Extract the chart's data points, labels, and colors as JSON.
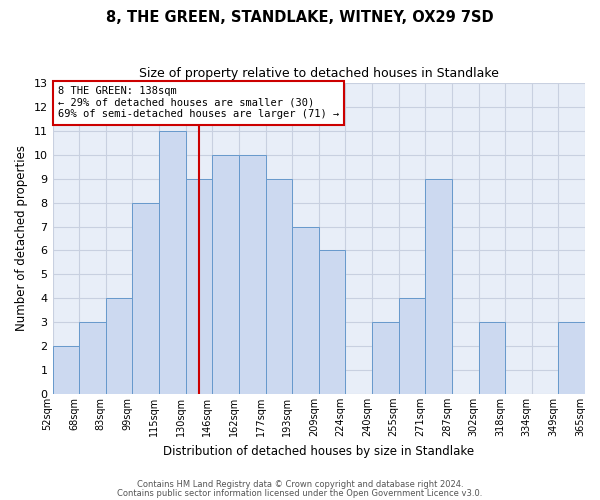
{
  "title": "8, THE GREEN, STANDLAKE, WITNEY, OX29 7SD",
  "subtitle": "Size of property relative to detached houses in Standlake",
  "xlabel": "Distribution of detached houses by size in Standlake",
  "ylabel": "Number of detached properties",
  "bin_labels": [
    "52sqm",
    "68sqm",
    "83sqm",
    "99sqm",
    "115sqm",
    "130sqm",
    "146sqm",
    "162sqm",
    "177sqm",
    "193sqm",
    "209sqm",
    "224sqm",
    "240sqm",
    "255sqm",
    "271sqm",
    "287sqm",
    "302sqm",
    "318sqm",
    "334sqm",
    "349sqm",
    "365sqm"
  ],
  "bar_heights": [
    2,
    3,
    4,
    8,
    11,
    9,
    10,
    10,
    9,
    7,
    6,
    0,
    3,
    4,
    9,
    0,
    3,
    0,
    0,
    3
  ],
  "bar_color": "#ccd9f0",
  "bar_edge_color": "#6699cc",
  "vline_position": 5.5,
  "vline_color": "#cc0000",
  "ylim": [
    0,
    13
  ],
  "yticks": [
    0,
    1,
    2,
    3,
    4,
    5,
    6,
    7,
    8,
    9,
    10,
    11,
    12,
    13
  ],
  "annotation_title": "8 THE GREEN: 138sqm",
  "annotation_line1": "← 29% of detached houses are smaller (30)",
  "annotation_line2": "69% of semi-detached houses are larger (71) →",
  "annotation_box_color": "#ffffff",
  "annotation_box_edge_color": "#cc0000",
  "footer_line1": "Contains HM Land Registry data © Crown copyright and database right 2024.",
  "footer_line2": "Contains public sector information licensed under the Open Government Licence v3.0.",
  "grid_color": "#c8d0e0",
  "background_color": "#e8eef8"
}
